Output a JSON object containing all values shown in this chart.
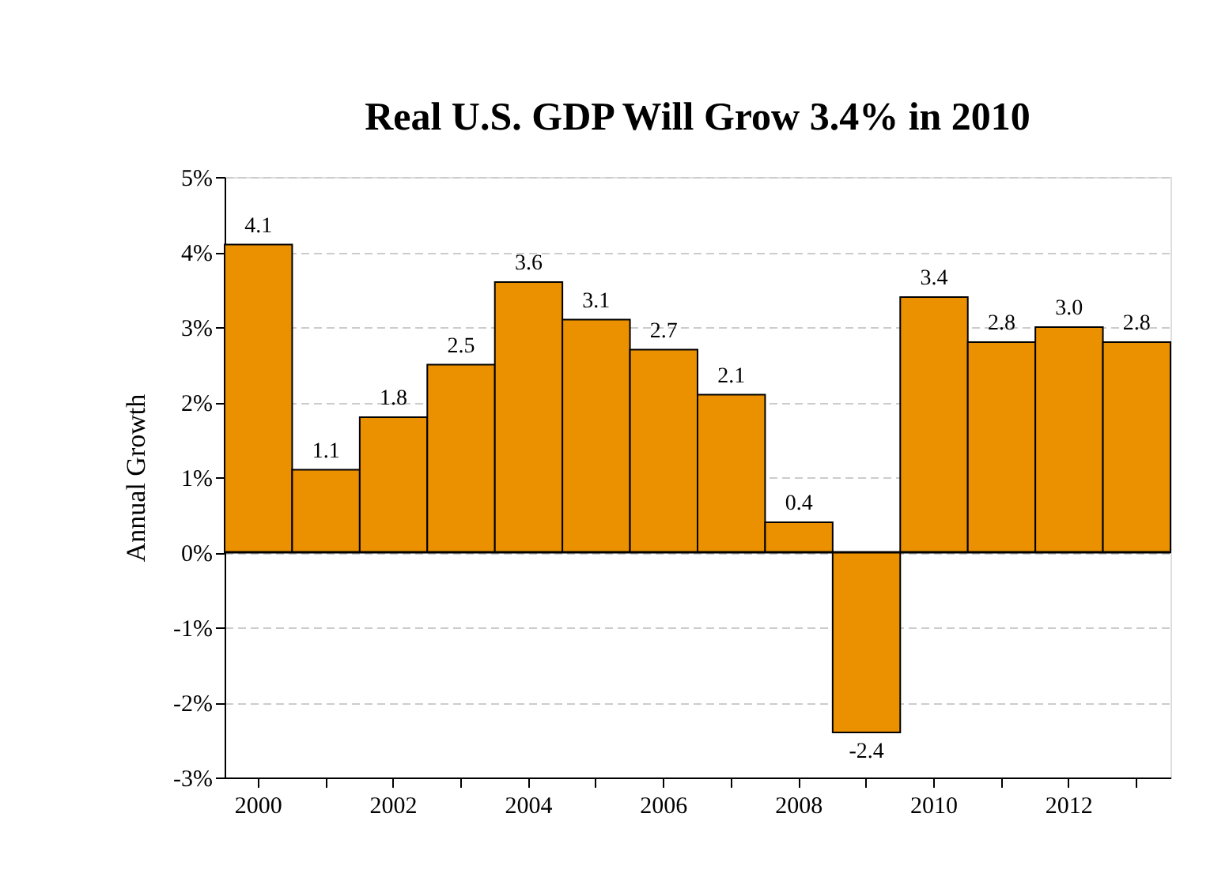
{
  "chart_data": {
    "type": "bar",
    "title": "Real U.S. GDP Will Grow 3.4% in 2010",
    "ylabel": "Annual Growth",
    "categories": [
      "2000",
      null,
      "2002",
      null,
      "2004",
      null,
      "2006",
      null,
      "2008",
      null,
      "2010",
      null,
      "2012",
      null
    ],
    "values": [
      4.1,
      1.1,
      1.8,
      2.5,
      3.6,
      3.1,
      2.7,
      2.1,
      0.4,
      -2.4,
      3.4,
      2.8,
      3.0,
      2.8
    ],
    "value_labels": [
      "4.1",
      "1.1",
      "1.8",
      "2.5",
      "3.6",
      "3.1",
      "2.7",
      "2.1",
      "0.4",
      "-2.4",
      "3.4",
      "2.8",
      "3.0",
      "2.8"
    ],
    "color": "#eb9100",
    "ylim": [
      -3,
      5
    ],
    "yticks": [
      {
        "value": -3,
        "label": "-3%"
      },
      {
        "value": -2,
        "label": "-2%"
      },
      {
        "value": -1,
        "label": "-1%"
      },
      {
        "value": 0,
        "label": "0%"
      },
      {
        "value": 1,
        "label": "1%"
      },
      {
        "value": 2,
        "label": "2%"
      },
      {
        "value": 3,
        "label": "3%"
      },
      {
        "value": 4,
        "label": "4%"
      },
      {
        "value": 5,
        "label": "5%"
      }
    ],
    "grid": "y"
  }
}
